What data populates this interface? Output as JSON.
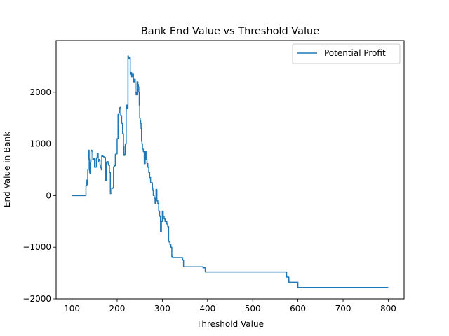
{
  "chart_data": {
    "type": "line",
    "title": "Bank End Value vs Threshold Value",
    "xlabel": "Threshold Value",
    "ylabel": "End Value in Bank",
    "xlim": [
      65,
      835
    ],
    "ylim": [
      -2000,
      3000
    ],
    "xticks": [
      100,
      200,
      300,
      400,
      500,
      600,
      700,
      800
    ],
    "xtick_labels": [
      "100",
      "200",
      "300",
      "400",
      "500",
      "600",
      "700",
      "800"
    ],
    "yticks": [
      -2000,
      -1000,
      0,
      1000,
      2000
    ],
    "ytick_labels": [
      "−2000",
      "−1000",
      "0",
      "1000",
      "2000"
    ],
    "legend": {
      "position": "top-right",
      "entries": [
        "Potential Profit"
      ]
    },
    "series": [
      {
        "name": "Potential Profit",
        "color": "#1f77b4",
        "x": [
          100,
          130,
          131,
          133,
          134,
          135,
          136,
          137,
          138,
          139,
          140,
          141,
          142,
          143,
          144,
          145,
          146,
          148,
          150,
          152,
          154,
          156,
          158,
          159,
          160,
          161,
          162,
          163,
          165,
          166,
          168,
          170,
          172,
          174,
          176,
          178,
          180,
          181,
          183,
          185,
          186,
          188,
          190,
          192,
          194,
          196,
          198,
          200,
          202,
          204,
          205,
          207,
          208,
          210,
          212,
          214,
          215,
          217,
          218,
          219,
          220,
          222,
          224,
          225,
          227,
          229,
          230,
          232,
          234,
          236,
          238,
          240,
          242,
          244,
          246,
          247,
          248,
          249,
          250,
          251,
          252,
          253,
          254,
          255,
          256,
          258,
          260,
          262,
          264,
          266,
          268,
          270,
          272,
          274,
          276,
          278,
          279,
          280,
          282,
          284,
          286,
          288,
          290,
          292,
          294,
          296,
          298,
          300,
          302,
          304,
          306,
          308,
          310,
          312,
          314,
          315,
          317,
          319,
          321,
          323,
          325,
          327,
          329,
          331,
          333,
          335,
          337,
          339,
          341,
          343,
          345,
          347,
          349,
          351,
          353,
          355,
          357,
          359,
          361,
          363,
          365,
          370,
          380,
          385,
          390,
          395,
          400,
          410,
          415,
          420,
          425,
          430,
          435,
          440,
          450,
          460,
          470,
          475,
          480,
          490,
          500,
          510,
          520,
          530,
          540,
          550,
          560,
          570,
          575,
          580,
          590,
          600,
          610,
          650,
          700,
          750,
          800
        ],
        "y": [
          0,
          0,
          200,
          300,
          220,
          500,
          850,
          880,
          700,
          450,
          430,
          650,
          870,
          880,
          860,
          870,
          700,
          720,
          550,
          550,
          730,
          820,
          650,
          680,
          700,
          690,
          600,
          540,
          500,
          780,
          760,
          750,
          740,
          300,
          650,
          660,
          620,
          590,
          450,
          40,
          50,
          140,
          150,
          560,
          580,
          800,
          810,
          1100,
          1570,
          1600,
          1700,
          1710,
          1550,
          1400,
          1200,
          950,
          780,
          800,
          1000,
          1000,
          1750,
          1680,
          2700,
          2650,
          2670,
          2350,
          2380,
          2300,
          2350,
          2200,
          2250,
          2000,
          1950,
          2200,
          2150,
          2100,
          2000,
          1750,
          1500,
          1450,
          1400,
          1300,
          1050,
          1000,
          900,
          850,
          620,
          850,
          700,
          620,
          550,
          450,
          350,
          250,
          250,
          150,
          100,
          0,
          -50,
          -150,
          120,
          -100,
          -150,
          -300,
          -400,
          -700,
          -500,
          -300,
          -400,
          -450,
          -500,
          -500,
          -550,
          -600,
          -880,
          -900,
          -950,
          -1000,
          -1180,
          -1200,
          -1200,
          -1200,
          -1200,
          -1200,
          -1200,
          -1200,
          -1200,
          -1200,
          -1200,
          -1200,
          -1250,
          -1380,
          -1380,
          -1380,
          -1380,
          -1380,
          -1380,
          -1380,
          -1380,
          -1380,
          -1380,
          -1380,
          -1380,
          -1380,
          -1400,
          -1480,
          -1480,
          -1480,
          -1480,
          -1480,
          -1480,
          -1480,
          -1480,
          -1480,
          -1480,
          -1480,
          -1480,
          -1480,
          -1480,
          -1480,
          -1480,
          -1480,
          -1480,
          -1480,
          -1480,
          -1480,
          -1480,
          -1480,
          -1580,
          -1680,
          -1680,
          -1780,
          -1780,
          -1780,
          -1780,
          -1780,
          -1780
        ]
      }
    ]
  }
}
